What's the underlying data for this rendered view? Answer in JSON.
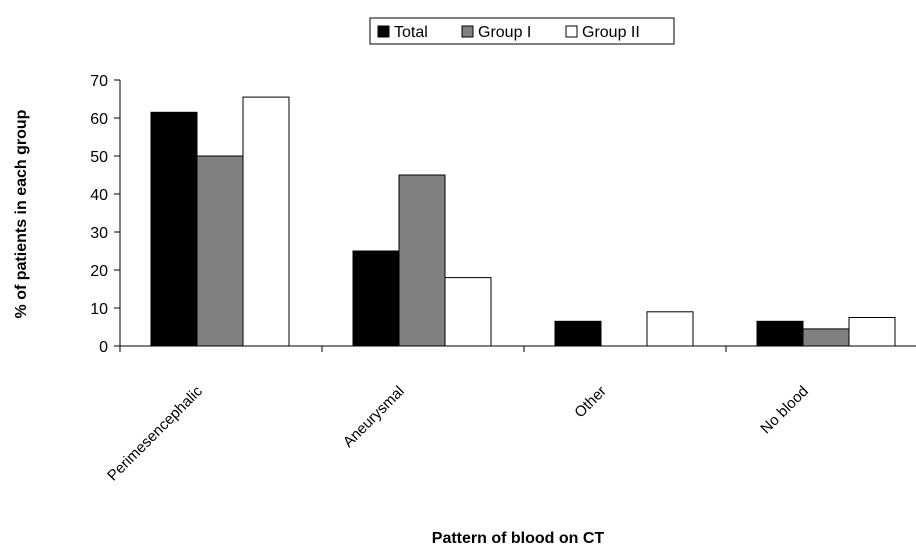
{
  "chart_data": {
    "type": "bar",
    "categories": [
      "Perimesencephalic",
      "Aneurysmal",
      "Other",
      "No blood"
    ],
    "series": [
      {
        "name": "Total",
        "values": [
          61.5,
          25,
          6.5,
          6.5
        ],
        "color": "#000000"
      },
      {
        "name": "Group I",
        "values": [
          50,
          45,
          0,
          4.5
        ],
        "color": "#808080"
      },
      {
        "name": "Group II",
        "values": [
          65.5,
          18,
          9,
          7.5
        ],
        "color": "#ffffff"
      }
    ],
    "xlabel": "Pattern of blood on CT",
    "ylabel": "% of patients in each group",
    "ylim": [
      0,
      70
    ],
    "yticks": [
      0,
      10,
      20,
      30,
      40,
      50,
      60,
      70
    ],
    "legend_position": "top",
    "grid": false
  }
}
